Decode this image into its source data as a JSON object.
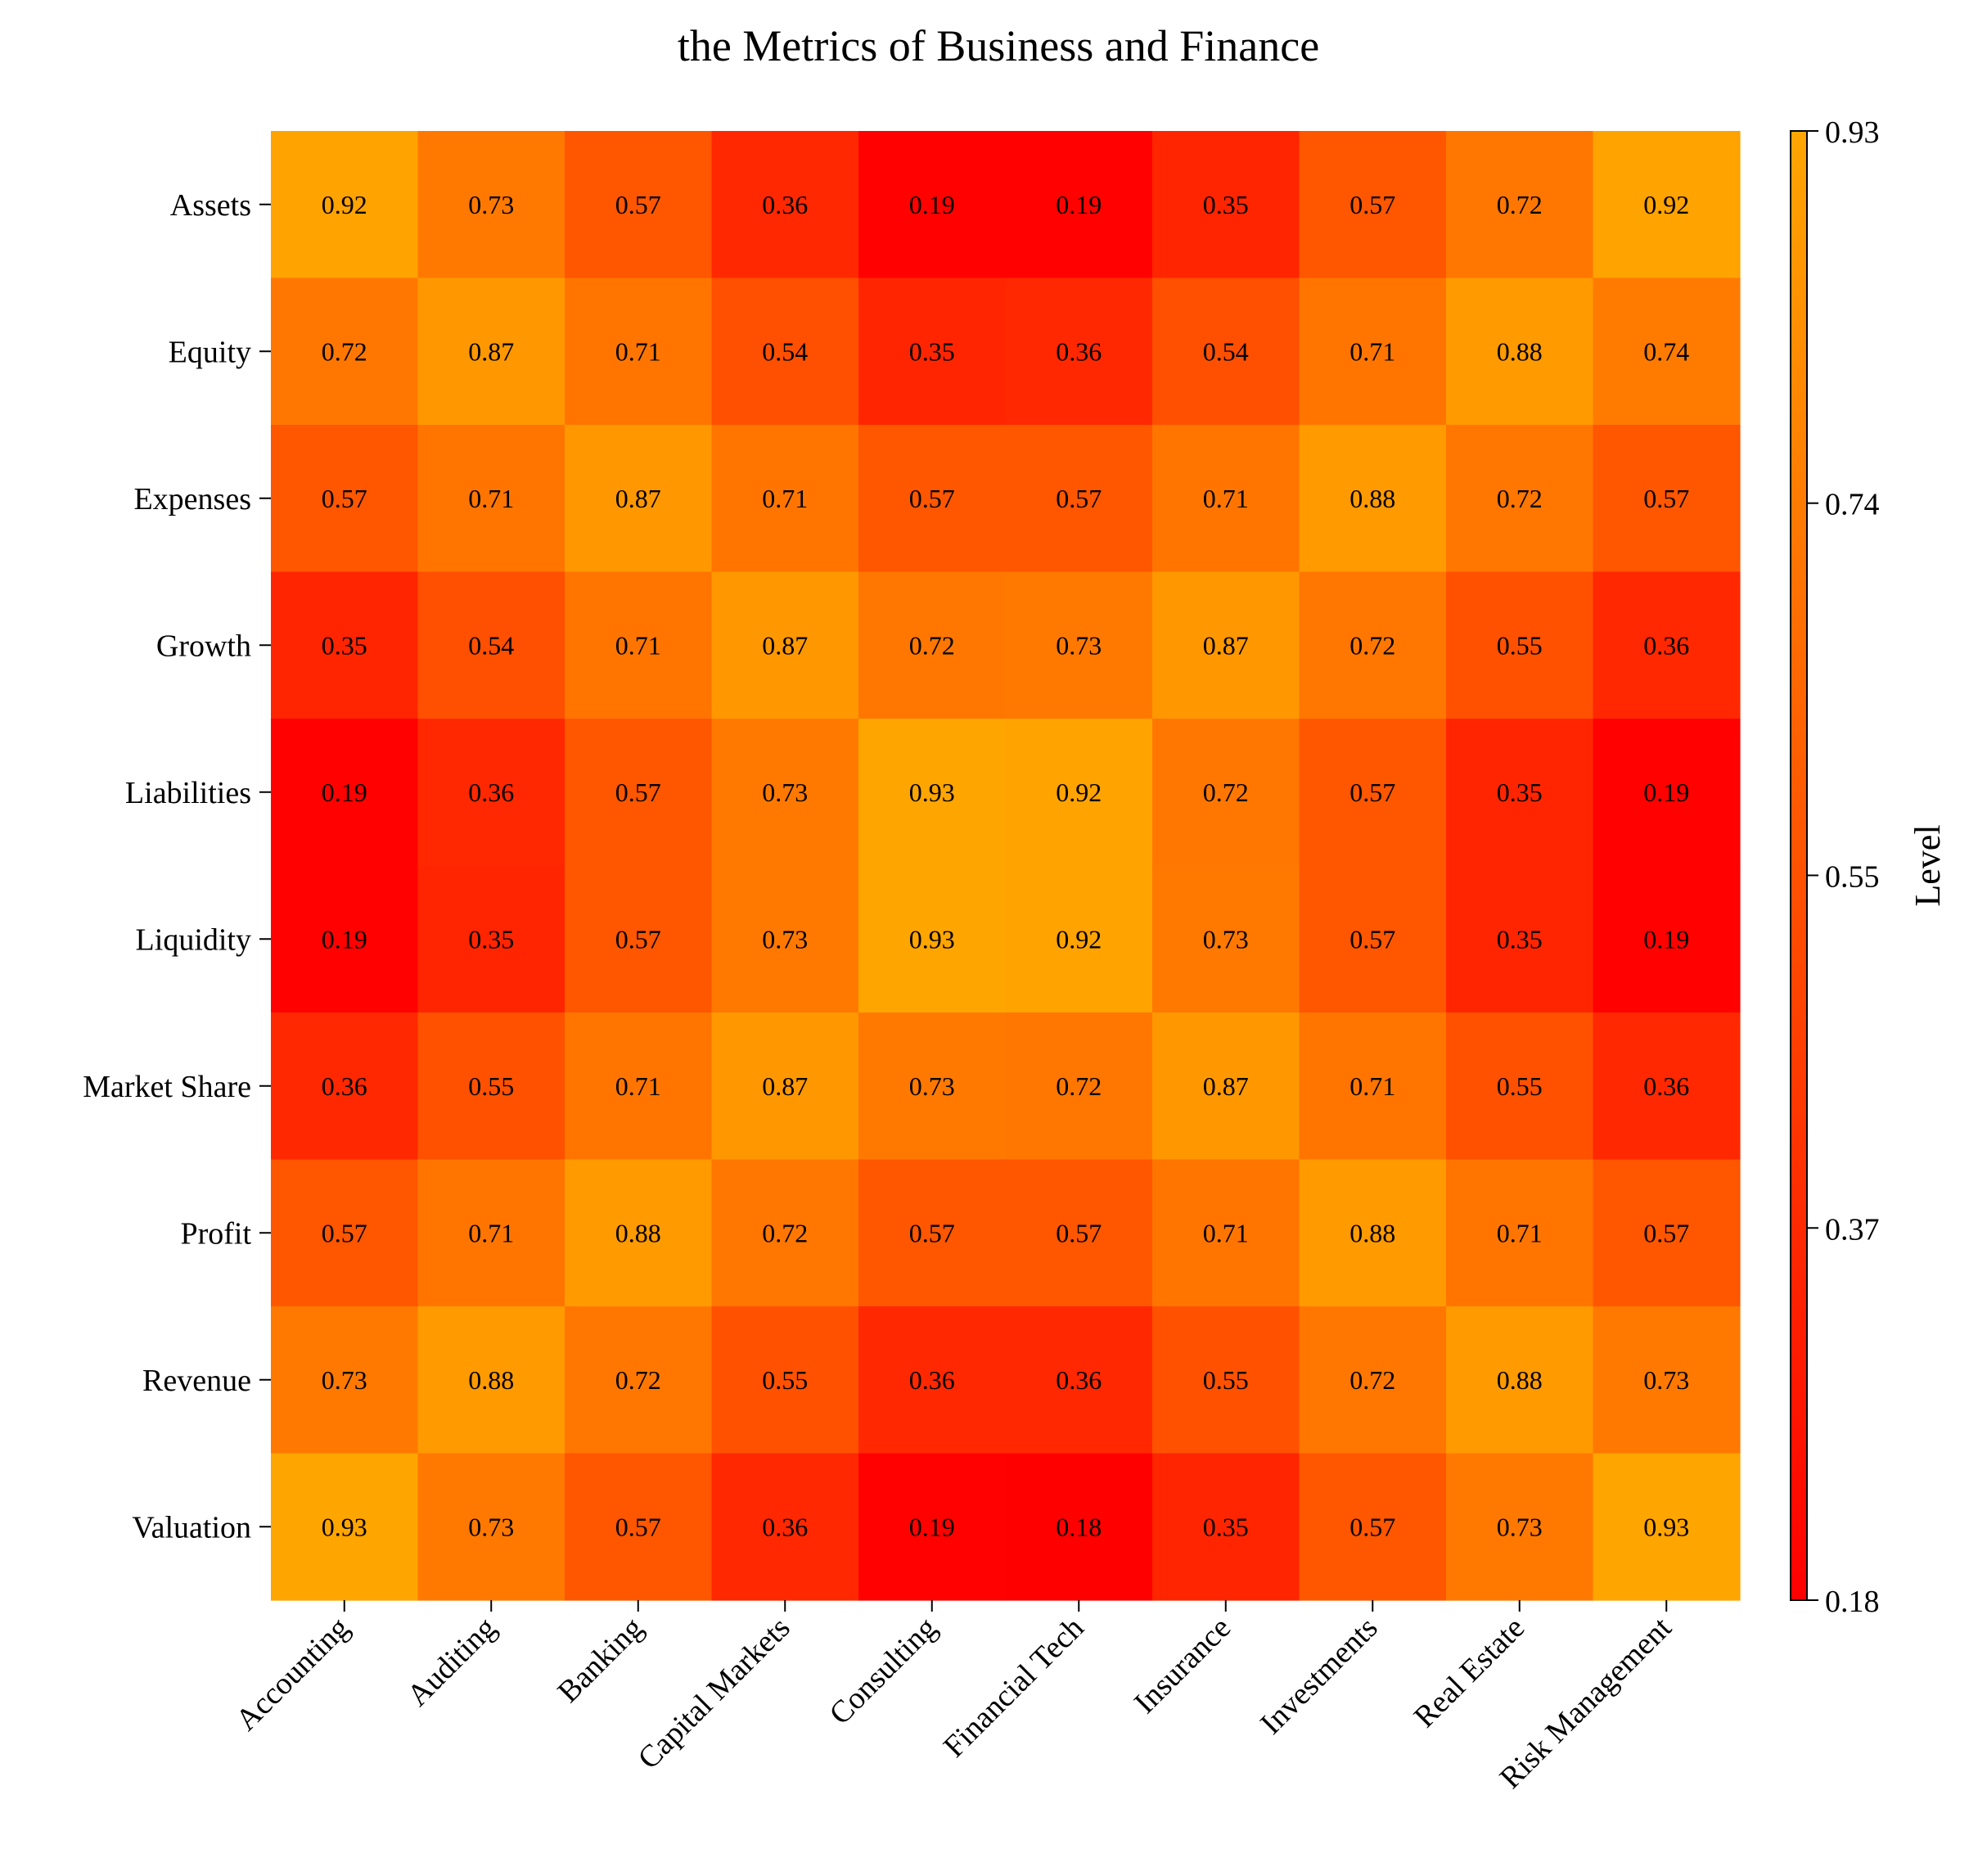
{
  "chart_data": {
    "type": "heatmap",
    "title": "the Metrics of Business and Finance",
    "xlabel": "",
    "ylabel": "",
    "x_categories": [
      "Accounting",
      "Auditing",
      "Banking",
      "Capital Markets",
      "Consulting",
      "Financial Tech",
      "Insurance",
      "Investments",
      "Real Estate",
      "Risk Management"
    ],
    "y_categories": [
      "Assets",
      "Equity",
      "Expenses",
      "Growth",
      "Liabilities",
      "Liquidity",
      "Market Share",
      "Profit",
      "Revenue",
      "Valuation"
    ],
    "values": [
      [
        0.92,
        0.73,
        0.57,
        0.36,
        0.19,
        0.19,
        0.35,
        0.57,
        0.72,
        0.92
      ],
      [
        0.72,
        0.87,
        0.71,
        0.54,
        0.35,
        0.36,
        0.54,
        0.71,
        0.88,
        0.74
      ],
      [
        0.57,
        0.71,
        0.87,
        0.71,
        0.57,
        0.57,
        0.71,
        0.88,
        0.72,
        0.57
      ],
      [
        0.35,
        0.54,
        0.71,
        0.87,
        0.72,
        0.73,
        0.87,
        0.72,
        0.55,
        0.36
      ],
      [
        0.19,
        0.36,
        0.57,
        0.73,
        0.93,
        0.92,
        0.72,
        0.57,
        0.35,
        0.19
      ],
      [
        0.19,
        0.35,
        0.57,
        0.73,
        0.93,
        0.92,
        0.73,
        0.57,
        0.35,
        0.19
      ],
      [
        0.36,
        0.55,
        0.71,
        0.87,
        0.73,
        0.72,
        0.87,
        0.71,
        0.55,
        0.36
      ],
      [
        0.57,
        0.71,
        0.88,
        0.72,
        0.57,
        0.57,
        0.71,
        0.88,
        0.71,
        0.57
      ],
      [
        0.73,
        0.88,
        0.72,
        0.55,
        0.36,
        0.36,
        0.55,
        0.72,
        0.88,
        0.73
      ],
      [
        0.93,
        0.73,
        0.57,
        0.36,
        0.19,
        0.18,
        0.35,
        0.57,
        0.73,
        0.93
      ]
    ],
    "colorbar": {
      "label": "Level",
      "min": 0.18,
      "max": 0.93,
      "ticks": [
        "0.18",
        "0.37",
        "0.55",
        "0.74",
        "0.93"
      ],
      "color_low": "#ff0000",
      "color_high": "#ffa500"
    },
    "grid": false,
    "legend": "none"
  }
}
